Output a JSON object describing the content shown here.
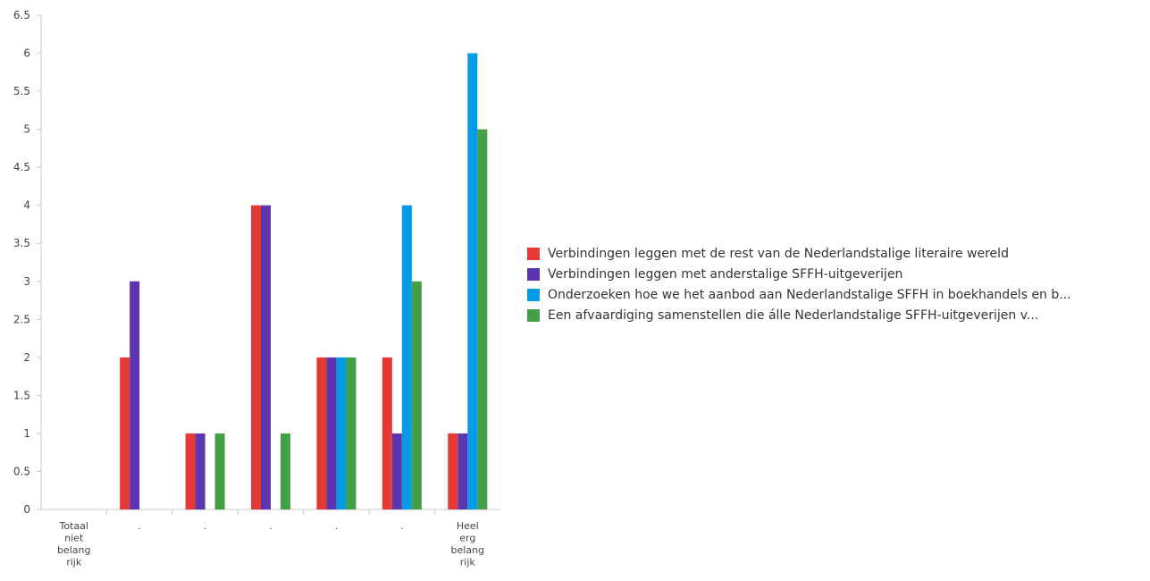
{
  "chart_data": {
    "type": "bar",
    "categories": [
      [
        "Totaal",
        "niet",
        "belang",
        "rijk"
      ],
      [
        "."
      ],
      [
        "."
      ],
      [
        "."
      ],
      [
        "."
      ],
      [
        "."
      ],
      [
        "Heel",
        "erg",
        "belang",
        "rijk"
      ]
    ],
    "series": [
      {
        "name": "Verbindingen leggen met de rest van de Nederlandstalige literaire wereld",
        "color": "#e53935",
        "values": [
          0,
          2,
          1,
          4,
          2,
          2,
          1
        ]
      },
      {
        "name": "Verbindingen leggen met anderstalige SFFH-uitgeverijen",
        "color": "#5e35b1",
        "values": [
          0,
          3,
          1,
          4,
          2,
          1,
          1
        ]
      },
      {
        "name": "Onderzoeken hoe we het aanbod aan Nederlandstalige SFFH in boekhandels en b...",
        "color": "#039be5",
        "values": [
          0,
          0,
          0,
          0,
          2,
          4,
          6
        ]
      },
      {
        "name": "Een afvaardiging samenstellen die álle Nederlandstalige SFFH-uitgeverijen v...",
        "color": "#43a047",
        "values": [
          0,
          0,
          1,
          1,
          2,
          3,
          5
        ]
      }
    ],
    "yticks": [
      "0",
      "0.5",
      "1",
      "1.5",
      "2",
      "2.5",
      "3",
      "3.5",
      "4",
      "4.5",
      "5",
      "5.5",
      "6",
      "6.5"
    ],
    "ylim": [
      0,
      6.5
    ],
    "grid": false,
    "legend_position": "right"
  }
}
